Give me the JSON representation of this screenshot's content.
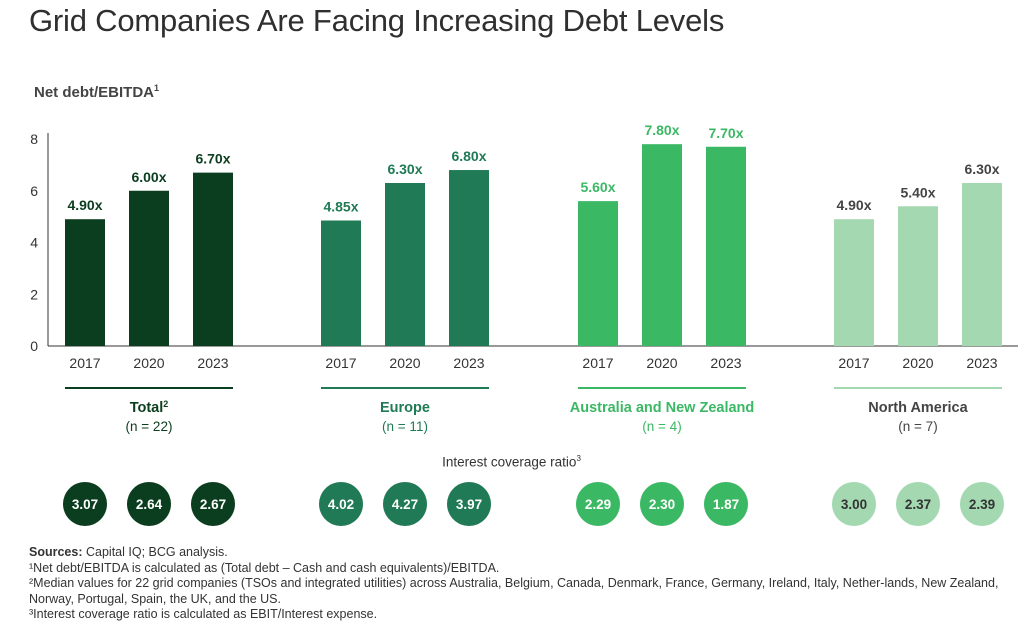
{
  "title": "Grid Companies Are Facing Increasing Debt Levels",
  "ylabel": "Net debt/EBITDA",
  "ylabel_sup": "1",
  "icr_label": "Interest coverage ratio",
  "icr_sup": "3",
  "notes": {
    "sources_label": "Sources:",
    "sources_text": "Capital IQ; BCG analysis.",
    "lines": [
      "¹Net debt/EBITDA is calculated as (Total debt – Cash and cash equivalents)/EBITDA.",
      "²Median values for 22 grid companies (TSOs and integrated utilities) across Australia, Belgium, Canada, Denmark, France, Germany, Ireland, Italy, Nether-lands, New Zealand, Norway, Portugal, Spain, the UK, and the US.",
      "³Interest coverage ratio is calculated as EBIT/Interest expense."
    ]
  },
  "colors": {
    "total": "#0b3d1f",
    "europe": "#1f7a55",
    "anz": "#3bb864",
    "na": "#a3d8b0",
    "axis": "#333333"
  },
  "chart_data": {
    "type": "bar",
    "ylim": [
      0,
      8
    ],
    "yticks": [
      0,
      2,
      4,
      6,
      8
    ],
    "grid": false,
    "groups": [
      {
        "name": "Total",
        "name_sup": "2",
        "n": "(n = 22)",
        "categories": [
          "2017",
          "2020",
          "2023"
        ],
        "values": [
          4.9,
          6.0,
          6.7
        ],
        "labels": [
          "4.90x",
          "6.00x",
          "6.70x"
        ],
        "icr": [
          "3.07",
          "2.64",
          "2.67"
        ],
        "color": "#0b3d1f",
        "label_color": "#0b3d1f",
        "circle_text": "#ffffff"
      },
      {
        "name": "Europe",
        "name_sup": "",
        "n": "(n = 11)",
        "categories": [
          "2017",
          "2020",
          "2023"
        ],
        "values": [
          4.85,
          6.3,
          6.8
        ],
        "labels": [
          "4.85x",
          "6.30x",
          "6.80x"
        ],
        "icr": [
          "4.02",
          "4.27",
          "3.97"
        ],
        "color": "#1f7a55",
        "label_color": "#1f7a55",
        "circle_text": "#ffffff"
      },
      {
        "name": "Australia and New Zealand",
        "name_sup": "",
        "n": "(n = 4)",
        "categories": [
          "2017",
          "2020",
          "2023"
        ],
        "values": [
          5.6,
          7.8,
          7.7
        ],
        "labels": [
          "5.60x",
          "7.80x",
          "7.70x"
        ],
        "icr": [
          "2.29",
          "2.30",
          "1.87"
        ],
        "color": "#3bb864",
        "label_color": "#3bb864",
        "circle_text": "#ffffff"
      },
      {
        "name": "North America",
        "name_sup": "",
        "n": "(n = 7)",
        "categories": [
          "2017",
          "2020",
          "2023"
        ],
        "values": [
          4.9,
          5.4,
          6.3
        ],
        "labels": [
          "4.90x",
          "5.40x",
          "6.30x"
        ],
        "icr": [
          "3.00",
          "2.37",
          "2.39"
        ],
        "color": "#a3d8b0",
        "label_color": "#444444",
        "circle_text": "#333333"
      }
    ]
  }
}
